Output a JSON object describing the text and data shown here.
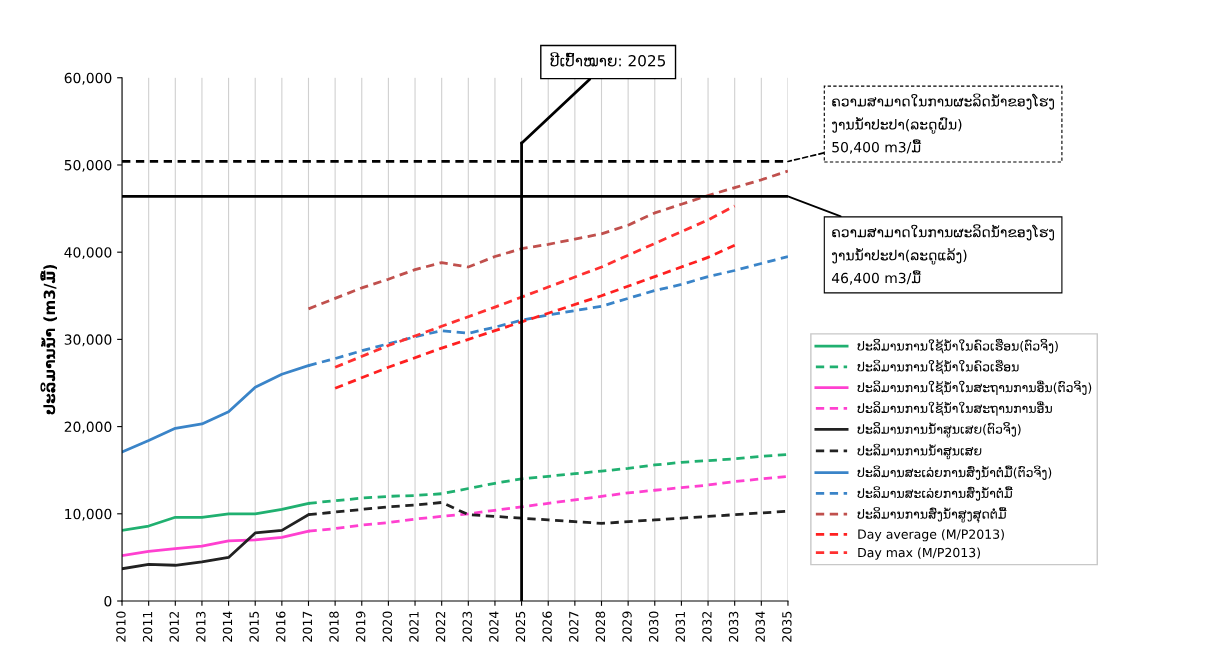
{
  "chart_data": {
    "type": "line",
    "ylabel": "ປະລິມານນ້ຳ (m3/ມື້)",
    "xlim": [
      2010,
      2035
    ],
    "xticks": [
      2010,
      2011,
      2012,
      2013,
      2014,
      2015,
      2016,
      2017,
      2018,
      2019,
      2020,
      2021,
      2022,
      2023,
      2024,
      2025,
      2026,
      2027,
      2028,
      2029,
      2030,
      2031,
      2032,
      2033,
      2034,
      2035
    ],
    "ylim": [
      0,
      60000
    ],
    "yticks": [
      {
        "value": 0,
        "label": "0"
      },
      {
        "value": 10000,
        "label": "10,000"
      },
      {
        "value": 20000,
        "label": "20,000"
      },
      {
        "value": 30000,
        "label": "30,000"
      },
      {
        "value": 40000,
        "label": "40,000"
      },
      {
        "value": 50000,
        "label": "50,000"
      },
      {
        "value": 60000,
        "label": "60,000"
      }
    ],
    "grid": "x",
    "legend": "right",
    "marker": "none",
    "series": [
      {
        "name": "ປະລິມານການໃຊ້ນ້ຳໃນຄົວເຮືອນ(ຕົວຈິງ)",
        "color": "#20b070",
        "line_style": "solid",
        "x": [
          2010,
          2011,
          2012,
          2013,
          2014,
          2015,
          2016,
          2017
        ],
        "values": [
          8100,
          8600,
          9600,
          9600,
          10000,
          10000,
          10500,
          11200
        ]
      },
      {
        "name": "ປະລິມານການໃຊ້ນ້ຳໃນຄົວເຮືອນ",
        "color": "#20b070",
        "line_style": "dashed",
        "x": [
          2017,
          2018,
          2019,
          2020,
          2021,
          2022,
          2023,
          2024,
          2025,
          2026,
          2027,
          2028,
          2029,
          2030,
          2031,
          2032,
          2033,
          2034,
          2035
        ],
        "values": [
          11200,
          11500,
          11800,
          12000,
          12100,
          12300,
          12900,
          13500,
          14000,
          14300,
          14600,
          14900,
          15200,
          15600,
          15900,
          16100,
          16300,
          16600,
          16800
        ]
      },
      {
        "name": "ປະລິມານການໃຊ້ນ້ຳໃນສະຖານການອື່ນ(ຕົວຈິງ)",
        "color": "#ff40d0",
        "line_style": "solid",
        "x": [
          2010,
          2011,
          2012,
          2013,
          2014,
          2015,
          2016,
          2017
        ],
        "values": [
          5200,
          5700,
          6000,
          6300,
          6900,
          7000,
          7300,
          8000
        ]
      },
      {
        "name": "ປະລິມານການໃຊ້ນ້ຳໃນສະຖານການອື່ນ",
        "color": "#ff40d0",
        "line_style": "dashed",
        "x": [
          2017,
          2018,
          2019,
          2020,
          2021,
          2022,
          2023,
          2024,
          2025,
          2026,
          2027,
          2028,
          2029,
          2030,
          2031,
          2032,
          2033,
          2034,
          2035
        ],
        "values": [
          8000,
          8300,
          8700,
          9000,
          9400,
          9700,
          10000,
          10400,
          10800,
          11200,
          11600,
          12000,
          12400,
          12700,
          13000,
          13300,
          13700,
          14000,
          14300
        ]
      },
      {
        "name": "ປະລິມານການນ້ຳສູນເສຍ(ຕົວຈິງ)",
        "color": "#222222",
        "line_style": "solid",
        "x": [
          2010,
          2011,
          2012,
          2013,
          2014,
          2015,
          2016,
          2017
        ],
        "values": [
          3700,
          4200,
          4100,
          4500,
          5000,
          7800,
          8100,
          9900
        ]
      },
      {
        "name": "ປະລິມານການນ້ຳສູນເສຍ",
        "color": "#222222",
        "line_style": "dashed",
        "x": [
          2017,
          2018,
          2019,
          2020,
          2021,
          2022,
          2023,
          2024,
          2025,
          2026,
          2027,
          2028,
          2029,
          2030,
          2031,
          2032,
          2033,
          2034,
          2035
        ],
        "values": [
          9900,
          10200,
          10500,
          10800,
          11000,
          11300,
          9900,
          9700,
          9500,
          9300,
          9100,
          8900,
          9100,
          9300,
          9500,
          9700,
          9900,
          10100,
          10300
        ]
      },
      {
        "name": "ປະລິມານສະເລ່ຍການສົ່ງນ້ຳຕໍ່ມື້(ຕົວຈິງ)",
        "color": "#3a84c8",
        "line_style": "solid",
        "x": [
          2010,
          2011,
          2012,
          2013,
          2014,
          2015,
          2016,
          2017
        ],
        "values": [
          17100,
          18400,
          19800,
          20300,
          21700,
          24500,
          26000,
          27000
        ]
      },
      {
        "name": "ປະລິມານສະເລ່ຍການສົ່ງນ້ຳຕໍ່ມື້",
        "color": "#3a84c8",
        "line_style": "dashed",
        "x": [
          2017,
          2018,
          2019,
          2020,
          2021,
          2022,
          2023,
          2024,
          2025,
          2026,
          2027,
          2028,
          2029,
          2030,
          2031,
          2032,
          2033,
          2034,
          2035
        ],
        "values": [
          27000,
          27800,
          28700,
          29500,
          30300,
          31000,
          30700,
          31400,
          32200,
          32800,
          33300,
          33800,
          34700,
          35600,
          36300,
          37200,
          37900,
          38700,
          39500
        ]
      },
      {
        "name": "ປະລິມານການສົ່ງນ້ຳສູງສຸດຕໍ່ມື້",
        "color": "#c0504d",
        "line_style": "dashed",
        "x": [
          2017,
          2018,
          2019,
          2020,
          2021,
          2022,
          2023,
          2024,
          2025,
          2026,
          2027,
          2028,
          2029,
          2030,
          2031,
          2032,
          2033,
          2034,
          2035
        ],
        "values": [
          33500,
          34700,
          35900,
          36900,
          38000,
          38800,
          38300,
          39500,
          40400,
          40900,
          41500,
          42100,
          43100,
          44500,
          45500,
          46500,
          47400,
          48300,
          49300
        ]
      },
      {
        "name": "Day average (M/P2013)",
        "color": "#ff2020",
        "line_style": "dashed",
        "x": [
          2018,
          2020,
          2022,
          2024,
          2026,
          2028,
          2030,
          2032,
          2033
        ],
        "values": [
          24400,
          26800,
          29000,
          31000,
          33000,
          35000,
          37200,
          39400,
          40800
        ]
      },
      {
        "name": "Day max (M/P2013)",
        "color": "#ff3030",
        "line_style": "dashed",
        "x": [
          2018,
          2020,
          2022,
          2024,
          2026,
          2028,
          2030,
          2032,
          2033
        ],
        "values": [
          26800,
          29300,
          31500,
          33700,
          36000,
          38300,
          41000,
          43700,
          45300
        ]
      }
    ],
    "ref_lines": [
      {
        "axis": "x",
        "value": 2025,
        "label": "ປີເປົ້າໝາຍ: 2025",
        "color": "#000000",
        "line_style": "solid"
      },
      {
        "axis": "y",
        "value": 50400,
        "label": "ຄວາມສາມາດໃນການຜະລິດນ້ຳຂອງໂຮງ\nງານນ້ຳປະປາ(ລະດູຝົນ)\n50,400 m3/ມື້",
        "color": "#000000",
        "line_style": "dashed"
      },
      {
        "axis": "y",
        "value": 46400,
        "label": "ຄວາມສາມາດໃນການຜະລິດນ້ຳຂອງໂຮງ\nງານນ້ຳປະປາ(ລະດູແລ້ງ)\n46,400 m3/ມື້",
        "color": "#000000",
        "line_style": "solid"
      }
    ]
  }
}
